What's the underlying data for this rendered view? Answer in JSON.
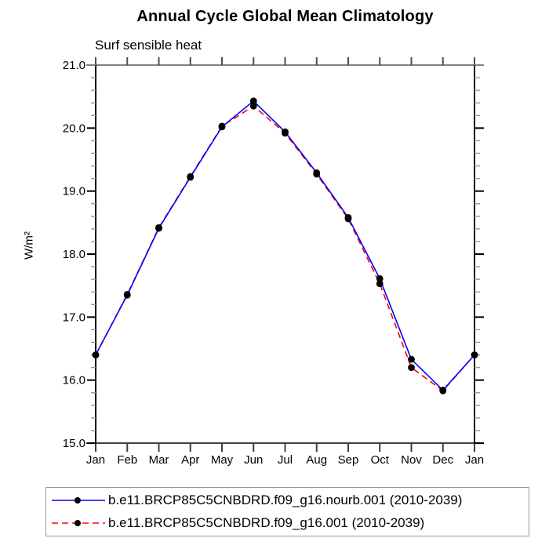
{
  "chart_data": {
    "type": "line",
    "title": "Annual Cycle Global Mean Climatology",
    "subtitle": "Surf sensible heat",
    "ylabel": "W/m²",
    "xlabel": "",
    "x_categories": [
      "Jan",
      "Feb",
      "Mar",
      "Apr",
      "May",
      "Jun",
      "Jul",
      "Aug",
      "Sep",
      "Oct",
      "Nov",
      "Dec",
      "Jan"
    ],
    "ylim": [
      15.0,
      21.0
    ],
    "y_major_ticks": [
      21.0,
      20.0,
      19.0,
      18.0,
      17.0,
      16.0,
      15.0
    ],
    "y_tick_labels": [
      "21.0",
      "20.0",
      "19.0",
      "18.0",
      "17.0",
      "16.0",
      "15.0"
    ],
    "y_minor_step": 0.2,
    "grid": false,
    "legend_position": "bottom",
    "marker": {
      "shape": "circle",
      "color": "#000000"
    },
    "series": [
      {
        "name": "b.e11.BRCP85C5CNBDRD.f09_g16.nourb.001 (2010-2039)",
        "color": "#0000ff",
        "line_style": "solid",
        "values": [
          16.4,
          17.35,
          18.41,
          19.22,
          20.02,
          20.43,
          19.94,
          19.29,
          18.58,
          17.61,
          16.33,
          15.84,
          16.4
        ]
      },
      {
        "name": "b.e11.BRCP85C5CNBDRD.f09_g16.001 (2010-2039)",
        "color": "#ff0000",
        "line_style": "dashed",
        "values": [
          16.4,
          17.36,
          18.42,
          19.23,
          20.03,
          20.35,
          19.92,
          19.27,
          18.56,
          17.53,
          16.2,
          15.83,
          16.4
        ]
      }
    ]
  }
}
